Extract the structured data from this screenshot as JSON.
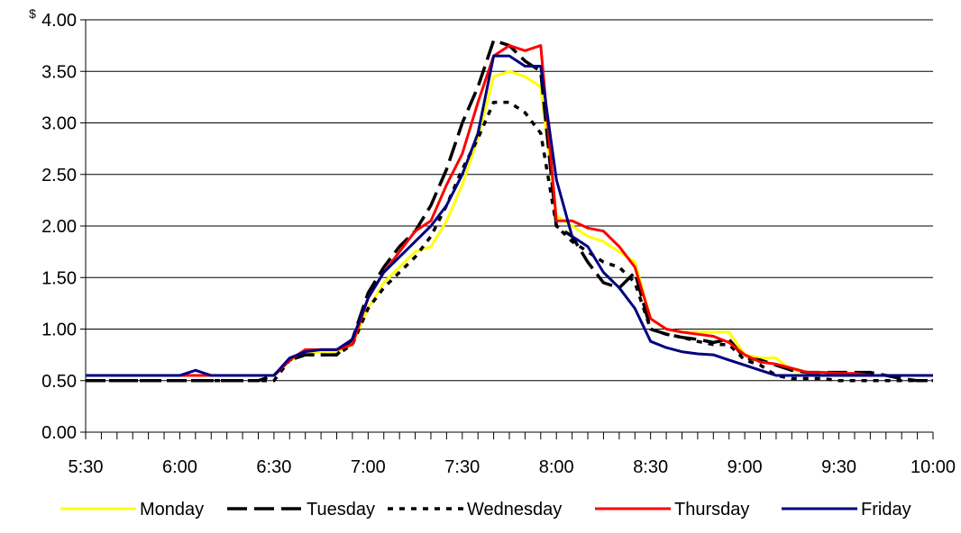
{
  "chart_data": {
    "type": "line",
    "y_unit_label": "$",
    "ylim": [
      0,
      4.0
    ],
    "y_ticks": [
      "0.00",
      "0.50",
      "1.00",
      "1.50",
      "2.00",
      "2.50",
      "3.00",
      "3.50",
      "4.00"
    ],
    "x_tick_labels": [
      "5:30",
      "6:00",
      "6:30",
      "7:00",
      "7:30",
      "8:00",
      "8:30",
      "9:00",
      "9:30",
      "10:00"
    ],
    "x_interval_minutes": 5,
    "grid": "horizontal",
    "legend_position": "bottom",
    "x": [
      "5:30",
      "5:35",
      "5:40",
      "5:45",
      "5:50",
      "5:55",
      "6:00",
      "6:05",
      "6:10",
      "6:15",
      "6:20",
      "6:25",
      "6:30",
      "6:35",
      "6:40",
      "6:45",
      "6:50",
      "6:55",
      "7:00",
      "7:05",
      "7:10",
      "7:15",
      "7:20",
      "7:25",
      "7:30",
      "7:35",
      "7:40",
      "7:45",
      "7:50",
      "7:55",
      "8:00",
      "8:05",
      "8:10",
      "8:15",
      "8:20",
      "8:25",
      "8:30",
      "8:35",
      "8:40",
      "8:45",
      "8:50",
      "8:55",
      "9:00",
      "9:05",
      "9:10",
      "9:15",
      "9:20",
      "9:25",
      "9:30",
      "9:35",
      "9:40",
      "9:45",
      "9:50",
      "9:55",
      "10:00"
    ],
    "series": [
      {
        "name": "Monday",
        "color": "#FFFF00",
        "dash": "solid",
        "values": [
          0.55,
          0.55,
          0.55,
          0.55,
          0.55,
          0.55,
          0.55,
          0.55,
          0.55,
          0.55,
          0.55,
          0.55,
          0.55,
          0.7,
          0.75,
          0.78,
          0.78,
          0.85,
          1.2,
          1.45,
          1.6,
          1.75,
          1.8,
          2.05,
          2.4,
          2.85,
          3.45,
          3.5,
          3.45,
          3.35,
          2.1,
          2.0,
          1.9,
          1.85,
          1.75,
          1.65,
          1.1,
          1.0,
          0.97,
          0.97,
          0.97,
          0.97,
          0.75,
          0.72,
          0.72,
          0.6,
          0.58,
          0.58,
          0.57,
          0.57,
          0.55,
          0.55,
          0.55,
          0.55,
          0.55
        ]
      },
      {
        "name": "Tuesday",
        "color": "#000000",
        "dash": "long",
        "values": [
          0.5,
          0.5,
          0.5,
          0.5,
          0.5,
          0.5,
          0.5,
          0.5,
          0.5,
          0.5,
          0.5,
          0.5,
          0.55,
          0.7,
          0.75,
          0.75,
          0.75,
          0.9,
          1.35,
          1.6,
          1.8,
          1.95,
          2.2,
          2.55,
          3.0,
          3.35,
          3.8,
          3.75,
          3.6,
          3.5,
          2.0,
          1.9,
          1.65,
          1.45,
          1.4,
          1.55,
          1.0,
          0.95,
          0.92,
          0.9,
          0.87,
          0.9,
          0.72,
          0.7,
          0.65,
          0.6,
          0.58,
          0.58,
          0.58,
          0.58,
          0.58,
          0.55,
          0.52,
          0.5,
          0.5
        ]
      },
      {
        "name": "Wednesday",
        "color": "#000000",
        "dash": "short",
        "values": [
          0.5,
          0.5,
          0.5,
          0.5,
          0.5,
          0.5,
          0.5,
          0.5,
          0.5,
          0.5,
          0.5,
          0.5,
          0.5,
          0.7,
          0.75,
          0.75,
          0.75,
          0.85,
          1.2,
          1.4,
          1.55,
          1.7,
          1.9,
          2.2,
          2.55,
          2.85,
          3.2,
          3.2,
          3.1,
          2.9,
          2.0,
          1.85,
          1.75,
          1.65,
          1.6,
          1.45,
          1.0,
          0.95,
          0.92,
          0.88,
          0.85,
          0.85,
          0.7,
          0.65,
          0.55,
          0.52,
          0.52,
          0.52,
          0.5,
          0.5,
          0.5,
          0.5,
          0.5,
          0.5,
          0.5
        ]
      },
      {
        "name": "Thursday",
        "color": "#FF0000",
        "dash": "solid",
        "values": [
          0.55,
          0.55,
          0.55,
          0.55,
          0.55,
          0.55,
          0.55,
          0.55,
          0.55,
          0.55,
          0.55,
          0.55,
          0.55,
          0.7,
          0.8,
          0.8,
          0.8,
          0.85,
          1.3,
          1.55,
          1.75,
          1.95,
          2.05,
          2.4,
          2.7,
          3.2,
          3.65,
          3.75,
          3.7,
          3.75,
          2.05,
          2.05,
          1.98,
          1.95,
          1.8,
          1.6,
          1.1,
          1.0,
          0.97,
          0.95,
          0.93,
          0.87,
          0.75,
          0.68,
          0.66,
          0.62,
          0.58,
          0.58,
          0.57,
          0.57,
          0.55,
          0.55,
          0.55,
          0.55,
          0.55
        ]
      },
      {
        "name": "Friday",
        "color": "#000080",
        "dash": "solid",
        "values": [
          0.55,
          0.55,
          0.55,
          0.55,
          0.55,
          0.55,
          0.55,
          0.6,
          0.55,
          0.55,
          0.55,
          0.55,
          0.55,
          0.72,
          0.78,
          0.8,
          0.8,
          0.9,
          1.3,
          1.55,
          1.7,
          1.85,
          2.0,
          2.2,
          2.5,
          2.9,
          3.65,
          3.65,
          3.55,
          3.55,
          2.45,
          1.9,
          1.8,
          1.55,
          1.4,
          1.2,
          0.88,
          0.82,
          0.78,
          0.76,
          0.75,
          0.7,
          0.65,
          0.6,
          0.55,
          0.55,
          0.55,
          0.55,
          0.55,
          0.55,
          0.55,
          0.55,
          0.55,
          0.55,
          0.55
        ]
      }
    ]
  }
}
